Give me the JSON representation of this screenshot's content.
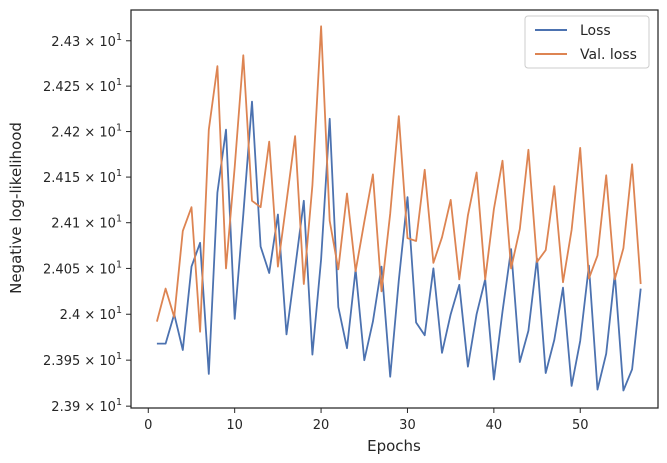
{
  "chart_data": {
    "type": "line",
    "title": "",
    "xlabel": "Epochs",
    "ylabel": "Negative log-likelihood",
    "xlim": [
      -2,
      59
    ],
    "ylim": [
      23.898,
      24.334
    ],
    "x_ticks": [
      0,
      10,
      20,
      30,
      40,
      50
    ],
    "x_tick_labels": [
      "0",
      "10",
      "20",
      "30",
      "40",
      "50"
    ],
    "y_ticks": [
      23.9,
      23.95,
      24.0,
      24.05,
      24.1,
      24.15,
      24.2,
      24.25,
      24.3
    ],
    "y_tick_labels": [
      {
        "mantissa": "2.39",
        "exp": "1"
      },
      {
        "mantissa": "2.395",
        "exp": "1"
      },
      {
        "mantissa": "2.4",
        "exp": "1"
      },
      {
        "mantissa": "2.405",
        "exp": "1"
      },
      {
        "mantissa": "2.41",
        "exp": "1"
      },
      {
        "mantissa": "2.415",
        "exp": "1"
      },
      {
        "mantissa": "2.42",
        "exp": "1"
      },
      {
        "mantissa": "2.425",
        "exp": "1"
      },
      {
        "mantissa": "2.43",
        "exp": "1"
      }
    ],
    "y_scale": "log",
    "grid": false,
    "legend_position": "top-right",
    "x": [
      1,
      2,
      3,
      4,
      5,
      6,
      7,
      8,
      9,
      10,
      11,
      12,
      13,
      14,
      15,
      16,
      17,
      18,
      19,
      20,
      21,
      22,
      23,
      24,
      25,
      26,
      27,
      28,
      29,
      30,
      31,
      32,
      33,
      34,
      35,
      36,
      37,
      38,
      39,
      40,
      41,
      42,
      43,
      44,
      45,
      46,
      47,
      48,
      49,
      50,
      51,
      52,
      53,
      54,
      55,
      56,
      57
    ],
    "series": [
      {
        "name": "Loss",
        "color": "#4c72b0",
        "values": [
          23.968,
          23.968,
          24.0,
          23.961,
          24.052,
          24.078,
          23.935,
          24.133,
          24.202,
          23.995,
          24.109,
          24.233,
          24.074,
          24.045,
          24.109,
          23.978,
          24.05,
          24.124,
          23.956,
          24.06,
          24.214,
          24.008,
          23.963,
          24.049,
          23.95,
          23.992,
          24.052,
          23.932,
          24.037,
          24.128,
          23.991,
          23.977,
          24.05,
          23.958,
          24.0,
          24.032,
          23.943,
          24.0,
          24.038,
          23.929,
          24.003,
          24.071,
          23.948,
          23.982,
          24.061,
          23.936,
          23.972,
          24.029,
          23.922,
          23.971,
          24.053,
          23.918,
          23.957,
          24.044,
          23.917,
          23.94,
          24.028
        ]
      },
      {
        "name": "Val. loss",
        "color": "#dd8452",
        "values": [
          23.992,
          24.028,
          23.997,
          24.091,
          24.117,
          23.981,
          24.202,
          24.272,
          24.05,
          24.161,
          24.284,
          24.124,
          24.117,
          24.189,
          24.052,
          24.123,
          24.195,
          24.033,
          24.141,
          24.316,
          24.102,
          24.049,
          24.132,
          24.047,
          24.101,
          24.153,
          24.025,
          24.11,
          24.217,
          24.083,
          24.08,
          24.158,
          24.056,
          24.084,
          24.125,
          24.038,
          24.108,
          24.155,
          24.038,
          24.115,
          24.168,
          24.05,
          24.093,
          24.18,
          24.057,
          24.07,
          24.14,
          24.035,
          24.092,
          24.182,
          24.039,
          24.064,
          24.152,
          24.038,
          24.072,
          24.164,
          24.033
        ]
      }
    ]
  }
}
